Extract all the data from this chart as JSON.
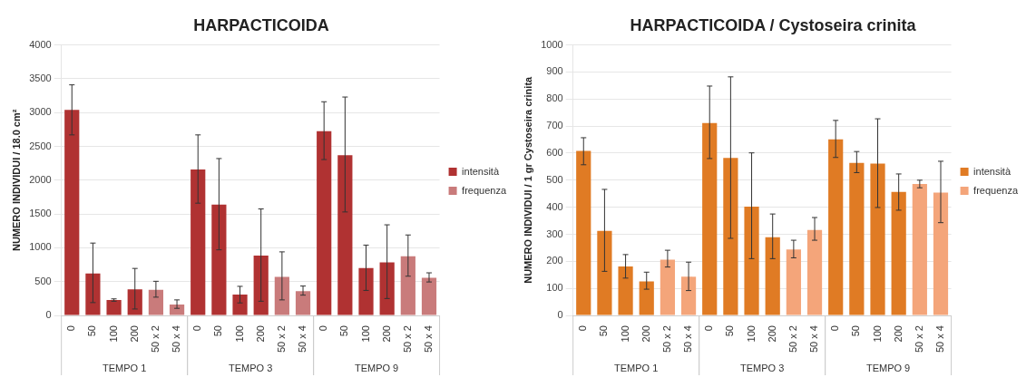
{
  "chart_data": [
    {
      "type": "bar",
      "title": "HARPACTICOIDA",
      "ylabel": "NUMERO INDIVIDUI / 18.0 cm²",
      "categories": [
        "0",
        "50",
        "100",
        "200",
        "50 x 2",
        "50 x 4",
        "0",
        "50",
        "100",
        "200",
        "50 x 2",
        "50 x 4",
        "0",
        "50",
        "100",
        "200",
        "50 x 2",
        "50 x 4"
      ],
      "series": [
        {
          "name": "intensità",
          "color": "#b03232",
          "values": [
            3040,
            620,
            230,
            385,
            null,
            null,
            2160,
            1640,
            310,
            885,
            null,
            null,
            2725,
            2370,
            700,
            785,
            null,
            null
          ],
          "errors": [
            [
              2670,
              3410
            ],
            [
              190,
              1070
            ],
            [
              210,
              245
            ],
            [
              95,
              695
            ],
            null,
            null,
            [
              1660,
              2670
            ],
            [
              970,
              2320
            ],
            [
              185,
              430
            ],
            [
              210,
              1575
            ],
            null,
            null,
            [
              2305,
              3160
            ],
            [
              1530,
              3230
            ],
            [
              370,
              1040
            ],
            [
              250,
              1340
            ],
            null,
            null
          ]
        },
        {
          "name": "frequenza",
          "color": "#c97b7b",
          "values": [
            null,
            null,
            null,
            null,
            380,
            160,
            null,
            null,
            null,
            null,
            570,
            360,
            null,
            null,
            null,
            null,
            875,
            558
          ],
          "errors": [
            null,
            null,
            null,
            null,
            [
              270,
              505
            ],
            [
              105,
              230
            ],
            null,
            null,
            null,
            null,
            [
              230,
              940
            ],
            [
              300,
              435
            ],
            null,
            null,
            null,
            null,
            [
              580,
              1190
            ],
            [
              495,
              630
            ]
          ]
        }
      ],
      "ylim": [
        0,
        4000
      ],
      "yticks": [
        0,
        500,
        1000,
        1500,
        2000,
        2500,
        3000,
        3500,
        4000
      ],
      "grid": "y",
      "legend": "right",
      "annotations": [
        "TEMPO 1",
        "TEMPO 3",
        "TEMPO 9"
      ]
    },
    {
      "type": "bar",
      "title": "HARPACTICOIDA / Cystoseira crinita",
      "ylabel": "NUMERO INDIVIDUI / 1 gr Cystoseira crinita",
      "categories": [
        "0",
        "50",
        "100",
        "200",
        "50 x 2",
        "50 x 4",
        "0",
        "50",
        "100",
        "200",
        "50 x 2",
        "50 x 4",
        "0",
        "50",
        "100",
        "200",
        "50 x 2",
        "50 x 4"
      ],
      "series": [
        {
          "name": "intensità",
          "color": "#e07b24",
          "values": [
            608,
            313,
            181,
            126,
            null,
            null,
            711,
            582,
            402,
            289,
            null,
            null,
            651,
            564,
            561,
            457,
            null,
            null
          ],
          "errors": [
            [
              557,
              657
            ],
            [
              163,
              466
            ],
            [
              138,
              225
            ],
            [
              97,
              160
            ],
            null,
            null,
            [
              580,
              848
            ],
            [
              285,
              882
            ],
            [
              210,
              601
            ],
            [
              210,
              375
            ],
            null,
            null,
            [
              584,
              721
            ],
            [
              528,
              606
            ],
            [
              399,
              727
            ],
            [
              389,
              523
            ],
            null,
            null
          ]
        },
        {
          "name": "frequenza",
          "color": "#f4a57a",
          "values": [
            null,
            null,
            null,
            null,
            206,
            143,
            null,
            null,
            null,
            null,
            244,
            316,
            null,
            null,
            null,
            null,
            486,
            454
          ],
          "errors": [
            null,
            null,
            null,
            null,
            [
              179,
              241
            ],
            [
              92,
              197
            ],
            null,
            null,
            null,
            null,
            [
              213,
              278
            ],
            [
              278,
              362
            ],
            null,
            null,
            null,
            null,
            [
              472,
              500
            ],
            [
              343,
              570
            ]
          ]
        }
      ],
      "ylim": [
        0,
        1000
      ],
      "yticks": [
        0,
        100,
        200,
        300,
        400,
        500,
        600,
        700,
        800,
        900,
        1000
      ],
      "grid": "y",
      "legend": "right",
      "annotations": [
        "TEMPO 1",
        "TEMPO 3",
        "TEMPO 9"
      ]
    }
  ]
}
